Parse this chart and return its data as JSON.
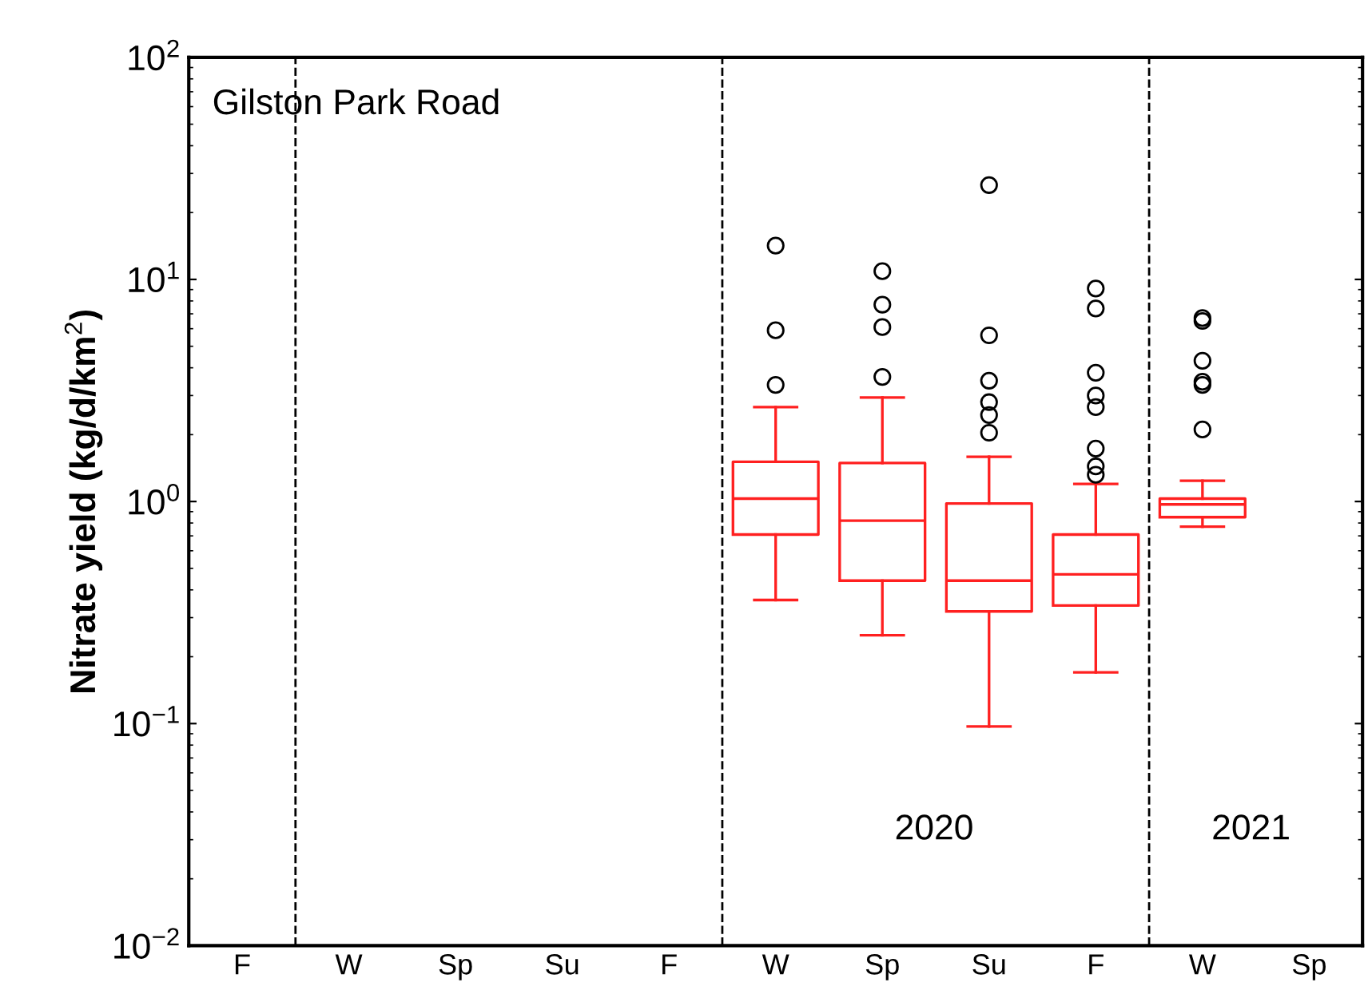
{
  "chart_data": {
    "type": "box",
    "ylabel": "Nitrate yield (kg/d/km$^{2}$)",
    "log": "y",
    "categories": [
      "F",
      "W",
      "Sp",
      "Su",
      "F",
      "W",
      "Sp",
      "Su",
      "F",
      "W",
      "Sp"
    ],
    "ylim": [
      0.01,
      100
    ],
    "yticks": [
      {
        "value": 0.01,
        "label": "10$^{−2}$"
      },
      {
        "value": 0.1,
        "label": "10$^{−1}$"
      },
      {
        "value": 1,
        "label": "10$^{0}$"
      },
      {
        "value": 10,
        "label": "10$^{1}$"
      },
      {
        "value": 100,
        "label": "10$^{2}$"
      }
    ],
    "color": "#ff2020",
    "grid": false,
    "boxes": [
      null,
      null,
      null,
      null,
      null,
      {
        "low": 0.36,
        "q1": 0.71,
        "median": 1.03,
        "q3": 1.51,
        "high": 2.66,
        "outliers": [
          14.2,
          5.9,
          3.35
        ]
      },
      {
        "low": 0.25,
        "q1": 0.44,
        "median": 0.82,
        "q3": 1.49,
        "high": 2.94,
        "outliers": [
          10.9,
          7.7,
          6.1,
          3.64
        ]
      },
      {
        "low": 0.097,
        "q1": 0.32,
        "median": 0.44,
        "q3": 0.98,
        "high": 1.59,
        "outliers": [
          26.6,
          5.6,
          3.5,
          2.8,
          2.45,
          2.04
        ]
      },
      {
        "low": 0.17,
        "q1": 0.34,
        "median": 0.47,
        "q3": 0.71,
        "high": 1.2,
        "outliers": [
          9.1,
          7.4,
          3.8,
          3.0,
          2.66,
          1.73,
          1.44,
          1.32
        ]
      },
      {
        "low": 0.77,
        "q1": 0.85,
        "median": 0.97,
        "q3": 1.03,
        "high": 1.24,
        "outliers": [
          6.7,
          6.5,
          4.3,
          3.46,
          3.35,
          2.11
        ]
      },
      null
    ],
    "annotations": [
      "Gilston Park Road",
      "2020",
      "2021"
    ]
  }
}
